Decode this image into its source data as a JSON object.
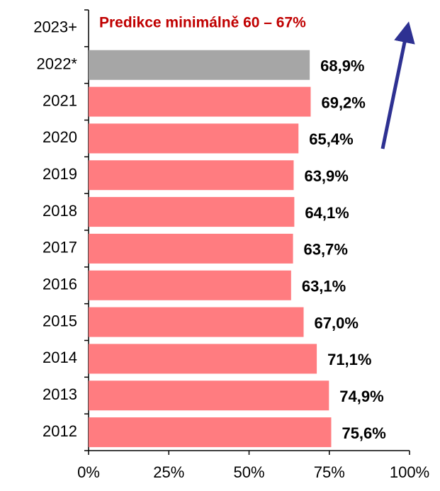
{
  "chart_data": {
    "type": "hbar",
    "annotation": "Predikce minimálně 60 – 67%",
    "categories": [
      "2023+",
      "2022*",
      "2021",
      "2020",
      "2019",
      "2018",
      "2017",
      "2016",
      "2015",
      "2014",
      "2013",
      "2012"
    ],
    "values": [
      null,
      68.9,
      69.2,
      65.4,
      63.9,
      64.1,
      63.7,
      63.1,
      67.0,
      71.1,
      74.9,
      75.6
    ],
    "value_labels": [
      null,
      "68,9%",
      "69,2%",
      "65,4%",
      "63,9%",
      "64,1%",
      "63,7%",
      "63,1%",
      "67,0%",
      "71,1%",
      "74,9%",
      "75,6%"
    ],
    "colors": [
      "#ff7c80",
      "#a6a6a6",
      "#ff7c80",
      "#ff7c80",
      "#ff7c80",
      "#ff7c80",
      "#ff7c80",
      "#ff7c80",
      "#ff7c80",
      "#ff7c80",
      "#ff7c80",
      "#ff7c80"
    ],
    "xlim": [
      0,
      100
    ],
    "xticks": [
      {
        "value": 0,
        "label": "0%"
      },
      {
        "value": 25,
        "label": "25%"
      },
      {
        "value": 50,
        "label": "50%"
      },
      {
        "value": 75,
        "label": "75%"
      },
      {
        "value": 100,
        "label": "100%"
      }
    ]
  }
}
